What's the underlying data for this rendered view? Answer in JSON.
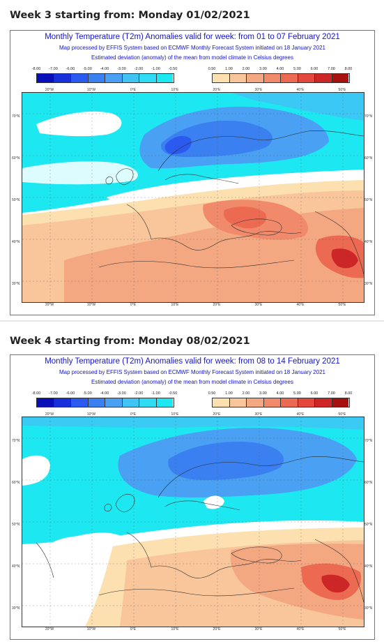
{
  "weeks": [
    {
      "heading": "Week 3 starting from: Monday 01/02/2021",
      "title": "Monthly Temperature (T2m) Anomalies valid for week: from 01 to 07 February 2021",
      "subtitle": "Map processed by EFFIS System based on ECMWF Monthly Forecast System initiated on 18 January 2021",
      "note": "Estimated deviation (anomaly) of the mean from model climate in Celsius degrees"
    },
    {
      "heading": "Week 4 starting from: Monday 08/02/2021",
      "title": "Monthly Temperature (T2m) Anomalies valid for week: from 08 to 14 February 2021",
      "subtitle": "Map processed by EFFIS System based on ECMWF Monthly Forecast System initiated on 18 January 2021",
      "note": "Estimated deviation (anomaly) of the mean from model climate in Celsius degrees"
    }
  ],
  "legend": {
    "cold_labels": [
      "-8.00",
      "-7.00",
      "-6.00",
      "-5.00",
      "-4.00",
      "-3.00",
      "-2.00",
      "-1.00",
      "-0.50"
    ],
    "cold_colors": [
      "#0a10b8",
      "#1730dc",
      "#2a5af0",
      "#3a80f0",
      "#4aa0f2",
      "#40c4f4",
      "#2fdcf4",
      "#1de8f2"
    ],
    "warm_labels": [
      "0.50",
      "1.00",
      "2.00",
      "3.00",
      "4.00",
      "5.00",
      "6.00",
      "7.00",
      "8.00"
    ],
    "warm_colors": [
      "#fde0b0",
      "#f9c59a",
      "#f4a882",
      "#f08a6a",
      "#ec6a52",
      "#e4483c",
      "#cc2626",
      "#a81010"
    ]
  },
  "axes": {
    "lat_labels": [
      "70°N",
      "60°N",
      "50°N",
      "40°N",
      "30°N"
    ],
    "lon_labels": [
      "20°W",
      "10°W",
      "0°E",
      "10°E",
      "20°E",
      "30°E",
      "40°E",
      "50°E"
    ]
  }
}
